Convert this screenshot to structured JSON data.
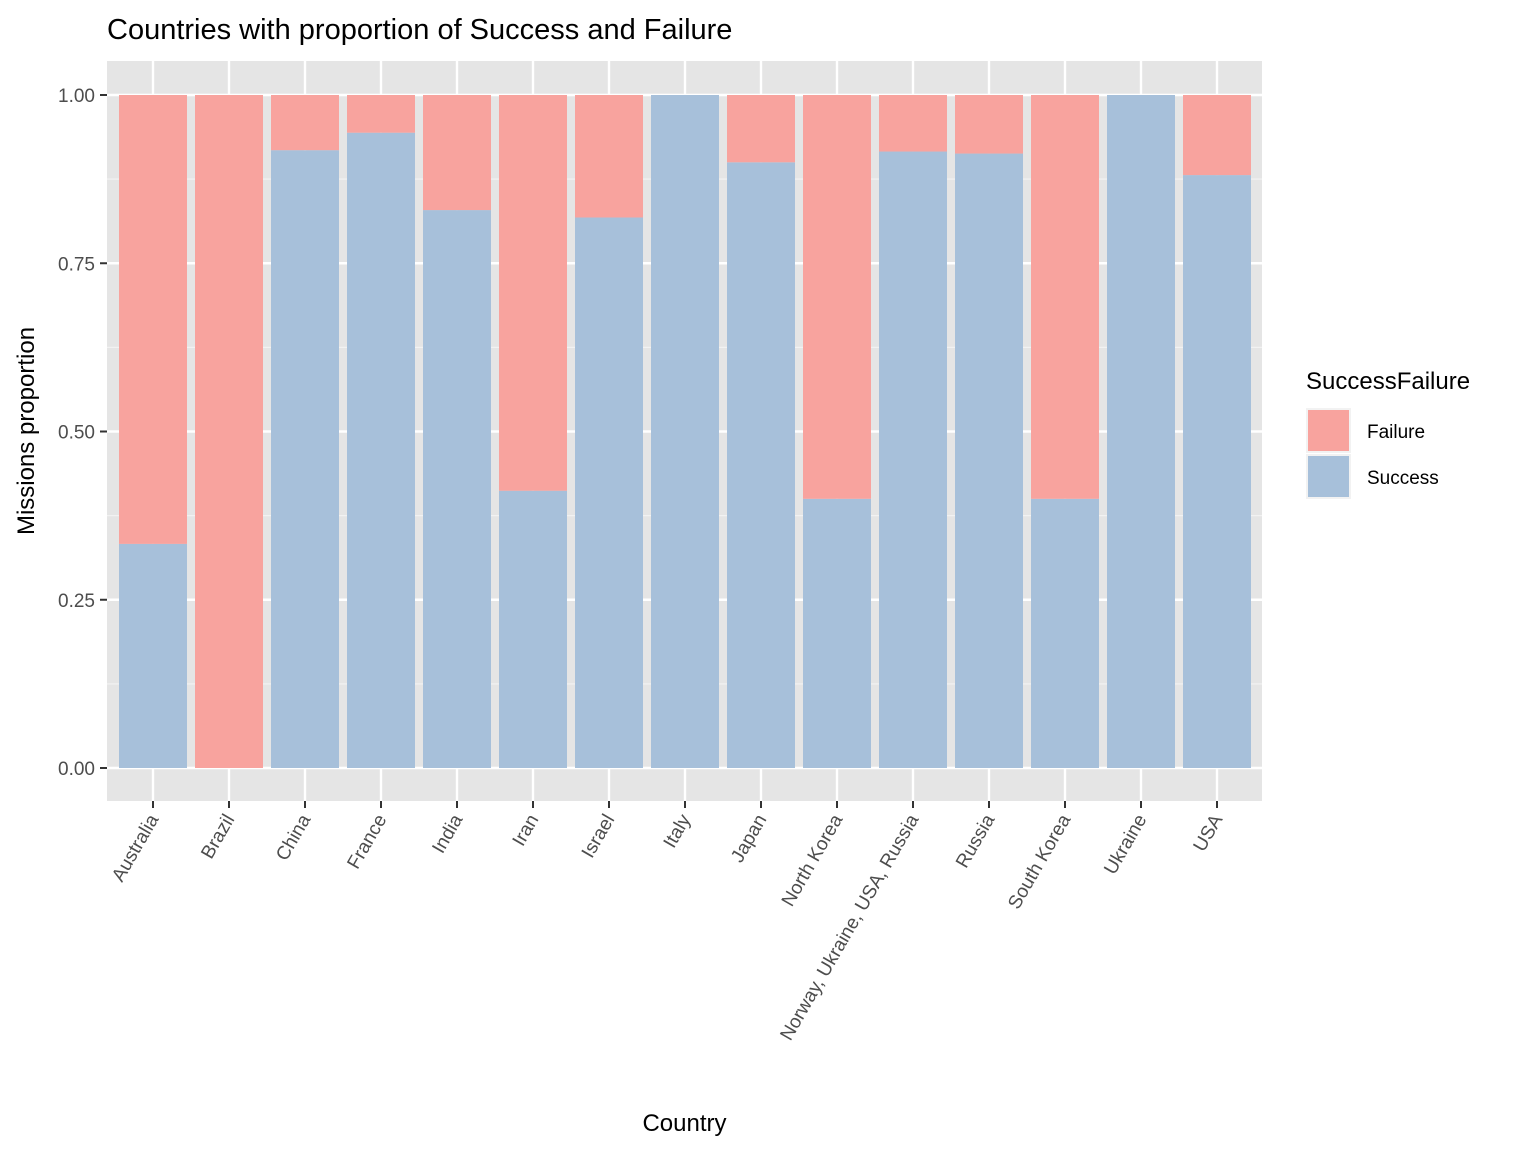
{
  "chart_data": {
    "type": "bar",
    "stacked": true,
    "title": "Countries with proportion of Success and Failure",
    "xlabel": "Country",
    "ylabel": "Missions proportion",
    "ylim": [
      0,
      1
    ],
    "yticks": [
      "0.00",
      "0.25",
      "0.50",
      "0.75",
      "1.00"
    ],
    "ytick_values": [
      0,
      0.25,
      0.5,
      0.75,
      1.0
    ],
    "grid": true,
    "legend_position": "right",
    "legend_title": "SuccessFailure",
    "categories": [
      "Australia",
      "Brazil",
      "China",
      "France",
      "India",
      "Iran",
      "Israel",
      "Italy",
      "Japan",
      "North Korea",
      "Norway, Ukraine, USA, Russia",
      "Russia",
      "South Korea",
      "Ukraine",
      "USA"
    ],
    "series": [
      {
        "name": "Failure",
        "color": "#f8a39e",
        "values": [
          0.667,
          1.0,
          0.082,
          0.056,
          0.171,
          0.588,
          0.182,
          0.0,
          0.1,
          0.6,
          0.084,
          0.087,
          0.6,
          0.0,
          0.119
        ]
      },
      {
        "name": "Success",
        "color": "#a7c0da",
        "values": [
          0.333,
          0.0,
          0.918,
          0.944,
          0.829,
          0.412,
          0.818,
          1.0,
          0.9,
          0.4,
          0.916,
          0.913,
          0.4,
          1.0,
          0.881
        ]
      }
    ]
  }
}
